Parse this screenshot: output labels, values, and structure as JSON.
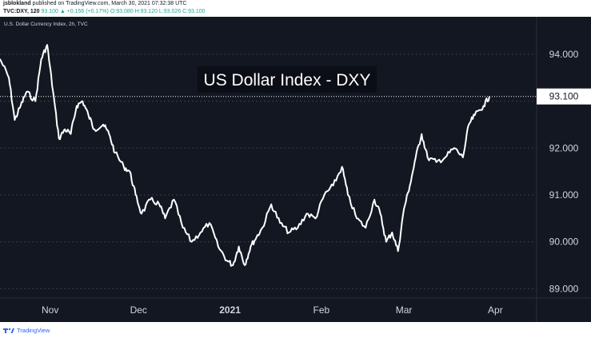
{
  "header": {
    "publisher": "jsblokland",
    "published_text": "published on TradingView.com, March 30, 2021 07:32:38 UTC",
    "symbol": "TVC:DXY, 120",
    "change": "93.100 ▲ +0.156 (+0.17%)",
    "ohlc": "O:93.080 H:93.120 L:93.026 C:93.100"
  },
  "footer": {
    "brand": "TradingView"
  },
  "chart_data": {
    "type": "line",
    "symbol_label": "U.S. Dollar Currency Index, 2h, TVC",
    "title": "US Dollar Index - DXY",
    "last_price": 93.1,
    "last_price_label": "93.100",
    "ylim": [
      88.8,
      94.8
    ],
    "y_ticks": [
      89,
      90,
      91,
      92,
      93,
      94
    ],
    "y_tick_labels": [
      "89.000",
      "90.000",
      "91.000",
      "92.000",
      "93.000",
      "94.000"
    ],
    "x_labels": [
      "Nov",
      "Dec",
      "2021",
      "Feb",
      "Mar",
      "Apr"
    ],
    "x_label_dates": [
      "2020-11-01",
      "2020-12-01",
      "2021-01-01",
      "2021-02-01",
      "2021-03-01",
      "2021-04-01"
    ],
    "xlim": [
      "2020-10-15",
      "2021-04-15"
    ],
    "grid": true,
    "series": [
      {
        "x": [
          "2020-10-15",
          "2020-10-18",
          "2020-10-20",
          "2020-10-22",
          "2020-10-24",
          "2020-10-27",
          "2020-10-29",
          "2020-10-31",
          "2020-11-02",
          "2020-11-04",
          "2020-11-06",
          "2020-11-08",
          "2020-11-10",
          "2020-11-12",
          "2020-11-14",
          "2020-11-16",
          "2020-11-19",
          "2020-11-21",
          "2020-11-23",
          "2020-11-26",
          "2020-11-28",
          "2020-11-30",
          "2020-12-02",
          "2020-12-05",
          "2020-12-08",
          "2020-12-10",
          "2020-12-13",
          "2020-12-16",
          "2020-12-19",
          "2020-12-22",
          "2020-12-25",
          "2020-12-28",
          "2020-12-31",
          "2021-01-02",
          "2021-01-04",
          "2021-01-06",
          "2021-01-08",
          "2021-01-10",
          "2021-01-12",
          "2021-01-15",
          "2021-01-18",
          "2021-01-21",
          "2021-01-24",
          "2021-01-27",
          "2021-01-30",
          "2021-02-02",
          "2021-02-05",
          "2021-02-08",
          "2021-02-10",
          "2021-02-13",
          "2021-02-16",
          "2021-02-19",
          "2021-02-21",
          "2021-02-23",
          "2021-02-25",
          "2021-02-27",
          "2021-03-01",
          "2021-03-03",
          "2021-03-05",
          "2021-03-07",
          "2021-03-09",
          "2021-03-12",
          "2021-03-15",
          "2021-03-18",
          "2021-03-21",
          "2021-03-23",
          "2021-03-25",
          "2021-03-28",
          "2021-03-30"
        ],
        "y": [
          93.9,
          93.5,
          92.6,
          92.9,
          93.2,
          93.0,
          93.9,
          94.2,
          93.2,
          92.2,
          92.4,
          92.3,
          92.9,
          93.0,
          92.7,
          92.4,
          92.5,
          92.3,
          91.9,
          91.6,
          91.5,
          91.0,
          90.6,
          90.9,
          90.8,
          90.5,
          90.9,
          90.3,
          90.0,
          90.2,
          90.4,
          89.9,
          89.6,
          89.5,
          89.9,
          89.5,
          89.9,
          90.1,
          90.3,
          90.8,
          90.4,
          90.2,
          90.3,
          90.6,
          90.5,
          91.0,
          91.2,
          91.6,
          91.0,
          90.5,
          90.3,
          90.9,
          90.6,
          90.0,
          90.2,
          89.8,
          90.7,
          91.2,
          91.8,
          92.3,
          91.8,
          91.7,
          91.8,
          92.0,
          91.8,
          92.5,
          92.7,
          92.9,
          93.1
        ]
      }
    ]
  },
  "colors": {
    "background": "#131722",
    "line": "#ffffff",
    "grid_dash": "#5d6170",
    "price_line": "#ffffff",
    "axis_text": "#d1d4dc",
    "up": "#26a69a",
    "brand": "#2962ff"
  }
}
